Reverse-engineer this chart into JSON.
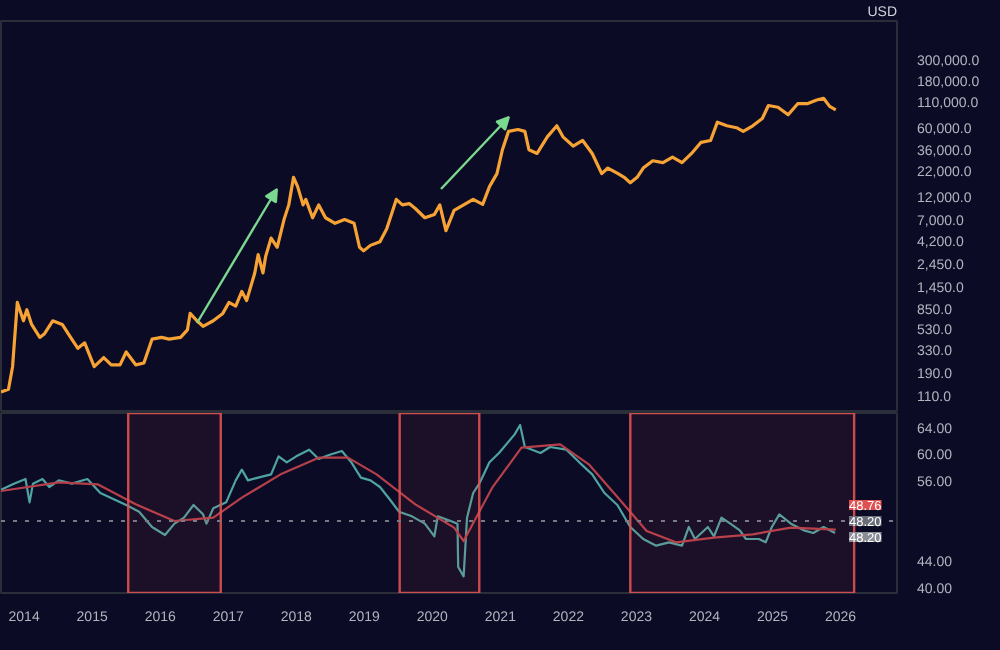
{
  "chart_data": [
    {
      "type": "line",
      "ylabel": "USD",
      "log": true,
      "tick_labels": "y",
      "xlim": [
        2013.66,
        2026.83
      ],
      "ylim": [
        74.5,
        743000
      ],
      "yticks": [
        {
          "value": 110,
          "label": "110.0"
        },
        {
          "value": 190,
          "label": "190.0"
        },
        {
          "value": 330,
          "label": "330.0"
        },
        {
          "value": 530,
          "label": "530.0"
        },
        {
          "value": 850,
          "label": "850.0"
        },
        {
          "value": 1450,
          "label": "1,450.0"
        },
        {
          "value": 2450,
          "label": "2,450.0"
        },
        {
          "value": 4200,
          "label": "4,200.0"
        },
        {
          "value": 7000,
          "label": "7,000.0"
        },
        {
          "value": 12000,
          "label": "12,000.0"
        },
        {
          "value": 22000,
          "label": "22,000.0"
        },
        {
          "value": 36000,
          "label": "36,000.0"
        },
        {
          "value": 60000,
          "label": "60,000.0"
        },
        {
          "value": 110000,
          "label": "110,000.0"
        },
        {
          "value": 180000,
          "label": "180,000.0"
        },
        {
          "value": 300000,
          "label": "300,000.0"
        }
      ],
      "x": [
        2013.66,
        2013.77,
        2013.83,
        2013.9,
        2013.99,
        2014.04,
        2014.11,
        2014.23,
        2014.3,
        2014.42,
        2014.56,
        2014.7,
        2014.79,
        2014.89,
        2015.03,
        2015.17,
        2015.28,
        2015.41,
        2015.5,
        2015.64,
        2015.76,
        2015.88,
        2016.02,
        2016.13,
        2016.3,
        2016.4,
        2016.44,
        2016.54,
        2016.63,
        2016.78,
        2016.92,
        2017.01,
        2017.11,
        2017.2,
        2017.27,
        2017.39,
        2017.44,
        2017.51,
        2017.55,
        2017.63,
        2017.72,
        2017.82,
        2017.89,
        2017.96,
        2018.02,
        2018.1,
        2018.14,
        2018.24,
        2018.33,
        2018.43,
        2018.57,
        2018.71,
        2018.85,
        2018.93,
        2018.99,
        2019.09,
        2019.23,
        2019.33,
        2019.47,
        2019.56,
        2019.66,
        2019.75,
        2019.89,
        2020.03,
        2020.11,
        2020.2,
        2020.32,
        2020.46,
        2020.6,
        2020.74,
        2020.84,
        2020.95,
        2021.03,
        2021.12,
        2021.26,
        2021.36,
        2021.42,
        2021.54,
        2021.69,
        2021.83,
        2021.92,
        2022.07,
        2022.21,
        2022.35,
        2022.49,
        2022.58,
        2022.73,
        2022.82,
        2022.91,
        2023.01,
        2023.1,
        2023.24,
        2023.39,
        2023.53,
        2023.67,
        2023.81,
        2023.95,
        2024.09,
        2024.19,
        2024.33,
        2024.47,
        2024.57,
        2024.71,
        2024.85,
        2024.94,
        2025.08,
        2025.23,
        2025.37,
        2025.51,
        2025.65,
        2025.75,
        2025.84,
        2025.93
      ],
      "series": [
        {
          "color": "#f7a234",
          "values": [
            122,
            130,
            221,
            1000,
            650,
            843,
            597,
            440,
            480,
            650,
            597,
            422,
            340,
            387,
            221,
            274,
            231,
            231,
            312,
            231,
            241,
            422,
            440,
            422,
            440,
            524,
            773,
            650,
            571,
            650,
            773,
            1000,
            918,
            1297,
            1044,
            2000,
            3078,
            2000,
            2950,
            4540,
            3656,
            7000,
            9890,
            18900,
            15200,
            9890,
            11250,
            7310,
            9890,
            7310,
            6410,
            7000,
            6410,
            3656,
            3357,
            3820,
            4170,
            5640,
            11250,
            9890,
            10200,
            9080,
            7310,
            7900,
            9890,
            5400,
            8690,
            9890,
            11250,
            10000,
            15200,
            20600,
            36100,
            55600,
            58100,
            55600,
            36100,
            33100,
            48900,
            63400,
            48900,
            39400,
            44900,
            33100,
            20600,
            23500,
            20600,
            18900,
            16600,
            18900,
            23500,
            27900,
            26700,
            30400,
            26700,
            33100,
            43000,
            44900,
            69000,
            63400,
            60600,
            55600,
            63400,
            75300,
            102000,
            98000,
            82000,
            106500,
            106500,
            116000,
            121000,
            100000,
            92300
          ]
        }
      ]
    },
    {
      "type": "line",
      "xlim": [
        2013.66,
        2026.83
      ],
      "ylim": [
        39.2,
        66.2
      ],
      "xticks": [
        2014,
        2015,
        2016,
        2017,
        2018,
        2019,
        2020,
        2021,
        2022,
        2023,
        2024,
        2025,
        2026
      ],
      "yticks": [
        {
          "value": 40,
          "label": "40.00"
        },
        {
          "value": 44,
          "label": "44.00"
        },
        {
          "value": 56,
          "label": "56.00"
        },
        {
          "value": 60,
          "label": "60.00"
        },
        {
          "value": 64,
          "label": "64.00"
        }
      ],
      "x": [
        2013.66,
        2013.85,
        2014.02,
        2014.08,
        2014.13,
        2014.27,
        2014.37,
        2014.51,
        2014.7,
        2014.93,
        2015.12,
        2015.31,
        2015.5,
        2015.69,
        2015.88,
        2016.07,
        2016.21,
        2016.35,
        2016.49,
        2016.63,
        2016.68,
        2016.78,
        2016.97,
        2017.11,
        2017.2,
        2017.29,
        2017.44,
        2017.63,
        2017.74,
        2017.86,
        2018.0,
        2018.19,
        2018.33,
        2018.48,
        2018.67,
        2018.81,
        2018.95,
        2019.09,
        2019.23,
        2019.37,
        2019.51,
        2019.7,
        2019.89,
        2020.03,
        2020.08,
        2020.27,
        2020.37,
        2020.38,
        2020.46,
        2020.51,
        2020.6,
        2020.69,
        2020.84,
        2020.98,
        2021.21,
        2021.29,
        2021.36,
        2021.59,
        2021.73,
        2021.97,
        2022.16,
        2022.35,
        2022.53,
        2022.72,
        2022.91,
        2023.1,
        2023.29,
        2023.48,
        2023.67,
        2023.77,
        2023.86,
        2024.05,
        2024.14,
        2024.25,
        2024.38,
        2024.52,
        2024.61,
        2024.8,
        2024.9,
        2024.99,
        2025.1,
        2025.27,
        2025.46,
        2025.6,
        2025.75,
        2025.92
      ],
      "series": [
        {
          "color": "#4fa3a0",
          "values": [
            54.7,
            55.6,
            56.3,
            52.8,
            55.6,
            56.3,
            55.1,
            56.1,
            55.6,
            56.3,
            54.2,
            53.3,
            52.4,
            51.4,
            49.1,
            47.9,
            49.6,
            50.5,
            52.4,
            51.0,
            49.6,
            51.9,
            52.8,
            56.1,
            57.7,
            56.1,
            56.5,
            57.0,
            59.7,
            58.8,
            59.7,
            60.7,
            59.3,
            59.9,
            60.5,
            58.8,
            56.5,
            56.1,
            55.1,
            53.3,
            51.4,
            50.7,
            49.6,
            47.7,
            50.7,
            50.0,
            49.6,
            43.1,
            41.7,
            50.5,
            54.2,
            55.6,
            58.8,
            60.2,
            63.0,
            64.4,
            61.1,
            60.2,
            61.1,
            60.7,
            58.8,
            57.0,
            54.2,
            52.4,
            49.1,
            47.3,
            46.3,
            46.8,
            46.3,
            49.1,
            47.3,
            49.1,
            47.7,
            50.5,
            49.6,
            48.6,
            47.3,
            47.3,
            46.8,
            49.1,
            51.0,
            49.6,
            48.6,
            48.2,
            49.1,
            48.2
          ]
        },
        {
          "color": "#b5404a",
          "x": [
            2013.66,
            2014.51,
            2015.08,
            2015.64,
            2016.21,
            2016.78,
            2017.2,
            2017.77,
            2018.33,
            2018.76,
            2019.18,
            2019.75,
            2020.32,
            2020.46,
            2020.88,
            2021.31,
            2021.88,
            2022.3,
            2022.73,
            2023.15,
            2023.58,
            2024.14,
            2024.71,
            2025.27,
            2025.93
          ],
          "values": [
            54.5,
            55.8,
            55.5,
            52.5,
            50.0,
            50.5,
            53.5,
            57.0,
            59.5,
            59.5,
            57.0,
            52.5,
            49.0,
            47.0,
            55.0,
            61.0,
            61.5,
            58.5,
            53.5,
            48.5,
            46.8,
            47.5,
            48.0,
            49.0,
            48.7
          ]
        }
      ],
      "ref_lines": [
        {
          "axis": "y",
          "value": 50,
          "color": "#787b86",
          "line_style": "dotted"
        }
      ],
      "bands": [
        {
          "axis": "x",
          "from": 2015.53,
          "to": 2016.89,
          "color": "#e05252"
        },
        {
          "axis": "x",
          "from": 2019.52,
          "to": 2020.69,
          "color": "#e05252"
        },
        {
          "axis": "x",
          "from": 2022.91,
          "to": 2026.2,
          "color": "#e05252"
        }
      ],
      "annotations": [
        "48.76",
        "48.20",
        "48.20"
      ]
    }
  ]
}
